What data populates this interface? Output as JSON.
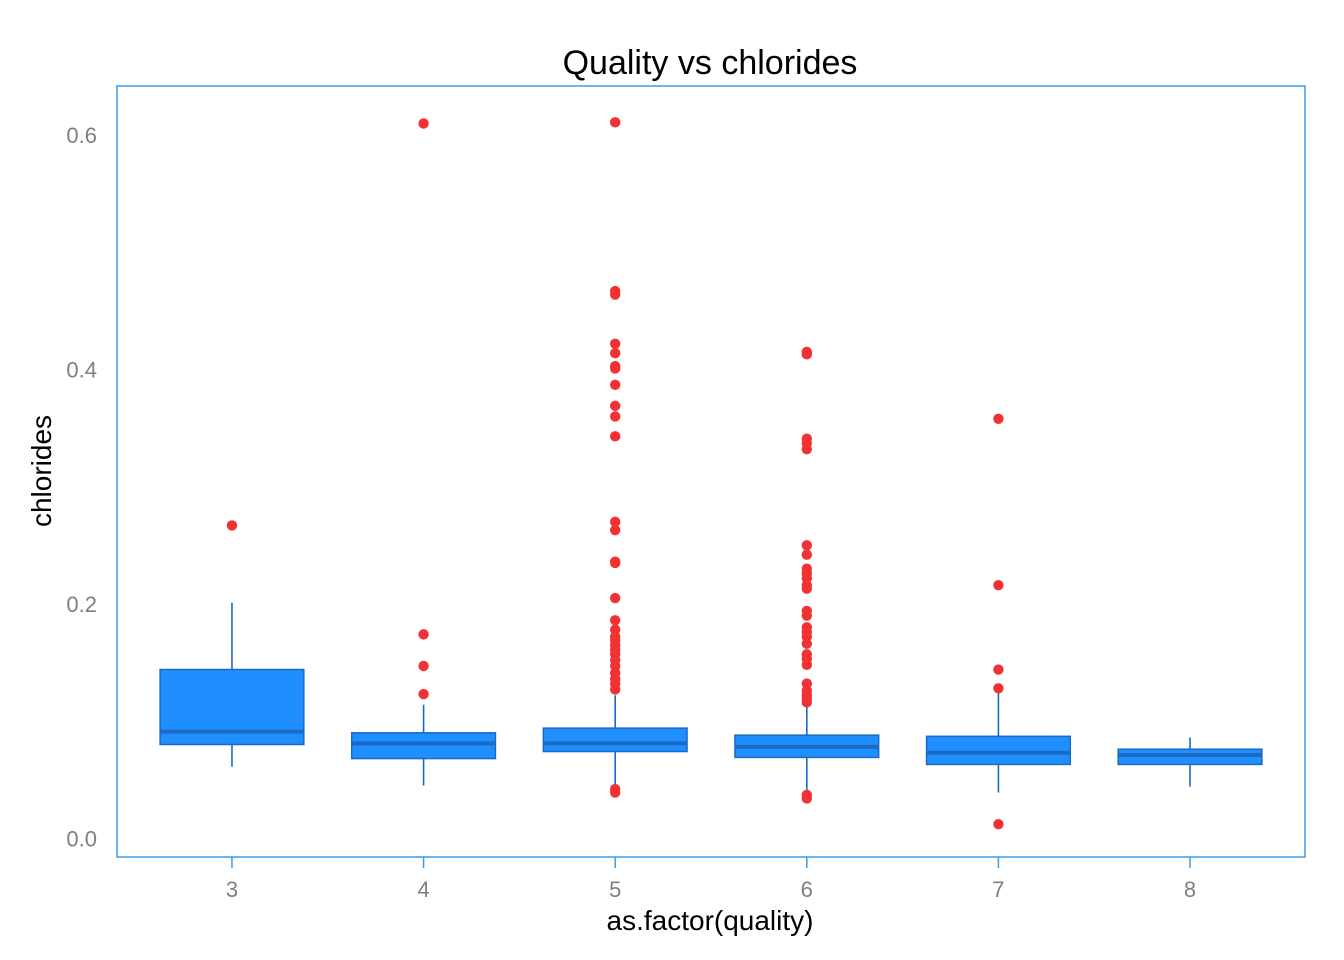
{
  "chart_data": {
    "type": "box",
    "title": "Quality vs chlorides",
    "xlabel": "as.factor(quality)",
    "ylabel": "chlorides",
    "categories": [
      "3",
      "4",
      "5",
      "6",
      "7",
      "8"
    ],
    "yticks": [
      "0.0",
      "0.2",
      "0.4",
      "0.6"
    ],
    "ytick_values": [
      0.0,
      0.2,
      0.4,
      0.6
    ],
    "ylim": [
      -0.016,
      0.642
    ],
    "grid": false,
    "legend": "none",
    "colors": {
      "box_fill": "#1f8fff",
      "box_stroke": "#1a6ac4",
      "median": "#1a6ac4",
      "whisker": "#1a6ac4",
      "outlier": "#f23232",
      "panel_border": "#3a9be8",
      "tick_text": "#7f7f7f"
    },
    "boxes": [
      {
        "category": "3",
        "q1": 0.08,
        "median": 0.091,
        "q3": 0.144,
        "whisker_low": 0.061,
        "whisker_high": 0.201,
        "outliers": [
          0.267
        ]
      },
      {
        "category": "4",
        "q1": 0.068,
        "median": 0.081,
        "q3": 0.09,
        "whisker_low": 0.045,
        "whisker_high": 0.114,
        "outliers": [
          0.61,
          0.174,
          0.147,
          0.123
        ]
      },
      {
        "category": "5",
        "q1": 0.074,
        "median": 0.081,
        "q3": 0.094,
        "whisker_low": 0.045,
        "whisker_high": 0.122,
        "outliers": [
          0.611,
          0.467,
          0.464,
          0.422,
          0.414,
          0.403,
          0.401,
          0.387,
          0.369,
          0.36,
          0.343,
          0.27,
          0.263,
          0.236,
          0.235,
          0.205,
          0.186,
          0.178,
          0.172,
          0.169,
          0.165,
          0.161,
          0.157,
          0.152,
          0.147,
          0.141,
          0.136,
          0.132,
          0.127,
          0.042,
          0.039
        ]
      },
      {
        "category": "6",
        "q1": 0.069,
        "median": 0.078,
        "q3": 0.088,
        "whisker_low": 0.039,
        "whisker_high": 0.119,
        "outliers": [
          0.415,
          0.413,
          0.341,
          0.337,
          0.332,
          0.25,
          0.242,
          0.23,
          0.226,
          0.222,
          0.216,
          0.213,
          0.194,
          0.19,
          0.18,
          0.176,
          0.172,
          0.166,
          0.157,
          0.153,
          0.148,
          0.132,
          0.126,
          0.122,
          0.119,
          0.116,
          0.037,
          0.034
        ]
      },
      {
        "category": "7",
        "q1": 0.063,
        "median": 0.073,
        "q3": 0.087,
        "whisker_low": 0.039,
        "whisker_high": 0.128,
        "outliers": [
          0.358,
          0.216,
          0.144,
          0.128,
          0.012
        ]
      },
      {
        "category": "8",
        "q1": 0.063,
        "median": 0.071,
        "q3": 0.076,
        "whisker_low": 0.044,
        "whisker_high": 0.086,
        "outliers": []
      }
    ]
  }
}
